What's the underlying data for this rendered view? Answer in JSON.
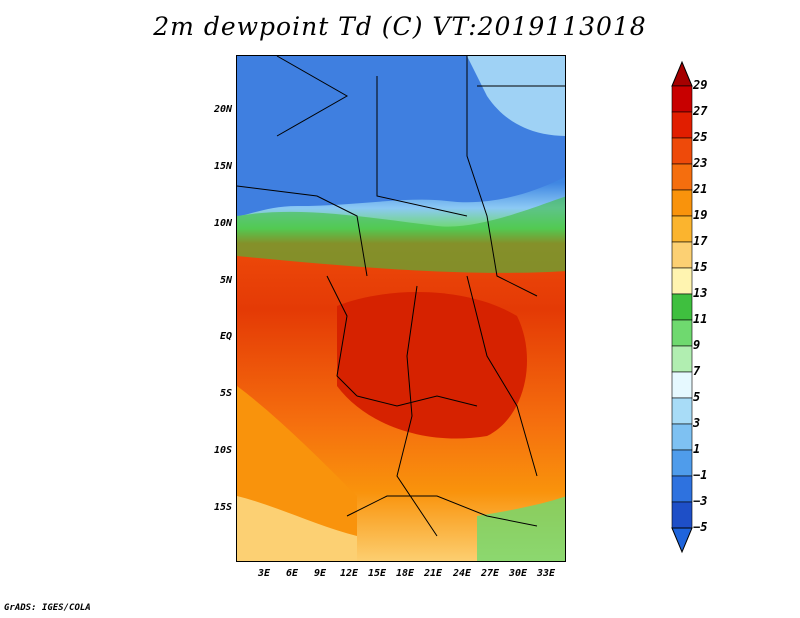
{
  "title": "2m dewpoint Td (C) VT:2019113018",
  "credit": "GrADS: IGES/COLA",
  "y_ticks": [
    "20N",
    "15N",
    "10N",
    "5N",
    "EQ",
    "5S",
    "10S",
    "15S"
  ],
  "x_ticks": [
    "3E",
    "6E",
    "9E",
    "12E",
    "15E",
    "18E",
    "21E",
    "24E",
    "27E",
    "30E",
    "33E"
  ],
  "colorbar": {
    "levels": [
      "29",
      "27",
      "25",
      "23",
      "21",
      "19",
      "17",
      "15",
      "13",
      "11",
      "9",
      "7",
      "5",
      "3",
      "1",
      "−1",
      "−3",
      "−5"
    ],
    "colors": [
      "#a50000",
      "#c80000",
      "#e11e00",
      "#ee4a0a",
      "#f56e0e",
      "#f9930c",
      "#fbb42e",
      "#fcd073",
      "#fff4b0",
      "#3fbf3f",
      "#6fd96f",
      "#b1eeb1",
      "#e6f9ff",
      "#a8dcf7",
      "#7ec1f2",
      "#4f9ceb",
      "#2e72df",
      "#1e4fc7",
      "#1e64dc"
    ]
  },
  "map_regions": {
    "sahara_dry": "#4f9ceb",
    "sahel_moist": "#a8dcf7",
    "green_band": "#6fd96f",
    "coast_humid": "#ee4a0a",
    "congo_basin": "#e11e00",
    "south_dry": "#fbb42e"
  }
}
